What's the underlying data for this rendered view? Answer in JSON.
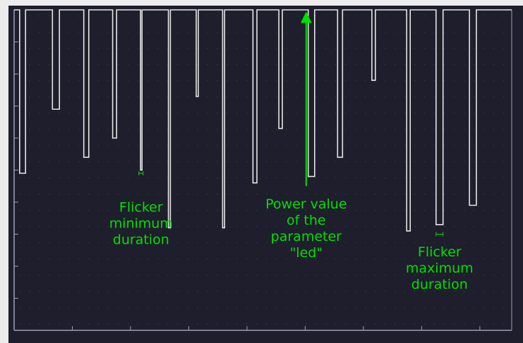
{
  "chart_data": {
    "type": "line",
    "title": "",
    "xlabel": "",
    "ylabel": "",
    "xlim": [
      0,
      100
    ],
    "ylim": [
      0,
      10
    ],
    "grid": true,
    "legend": "none",
    "colors": {
      "background": "#1e1e2c",
      "grid": "#3a3d4e",
      "axis": "#9aa0b0",
      "series": "#e6e6e6",
      "annotation": "#00e000"
    },
    "series": [
      {
        "points": [
          [
            0,
            10
          ],
          [
            1.1,
            10
          ],
          [
            1.1,
            4.9
          ],
          [
            2.3,
            4.9
          ],
          [
            2.3,
            10
          ],
          [
            7.7,
            10
          ],
          [
            7.7,
            6.9
          ],
          [
            9.1,
            6.9
          ],
          [
            9.1,
            10
          ],
          [
            14.0,
            10
          ],
          [
            14.0,
            5.4
          ],
          [
            15.0,
            5.4
          ],
          [
            15.0,
            10
          ],
          [
            19.8,
            10
          ],
          [
            19.8,
            6.0
          ],
          [
            20.6,
            6.0
          ],
          [
            20.6,
            10
          ],
          [
            25.4,
            10
          ],
          [
            25.4,
            5.0
          ],
          [
            25.7,
            5.0
          ],
          [
            25.7,
            10
          ],
          [
            31.0,
            10
          ],
          [
            31.0,
            3.2
          ],
          [
            31.4,
            3.2
          ],
          [
            31.4,
            10
          ],
          [
            36.6,
            10
          ],
          [
            36.6,
            7.3
          ],
          [
            37.0,
            7.3
          ],
          [
            37.0,
            10
          ],
          [
            41.9,
            10
          ],
          [
            41.9,
            3.2
          ],
          [
            42.3,
            3.2
          ],
          [
            42.3,
            10
          ],
          [
            48.0,
            10
          ],
          [
            48.0,
            4.6
          ],
          [
            48.8,
            4.6
          ],
          [
            48.8,
            10
          ],
          [
            53.2,
            10
          ],
          [
            53.2,
            6.3
          ],
          [
            53.9,
            6.3
          ],
          [
            53.9,
            10
          ],
          [
            59.1,
            10
          ],
          [
            59.1,
            4.8
          ],
          [
            60.4,
            4.8
          ],
          [
            60.4,
            10
          ],
          [
            65.0,
            10
          ],
          [
            65.0,
            5.4
          ],
          [
            66.0,
            5.4
          ],
          [
            66.0,
            10
          ],
          [
            71.9,
            10
          ],
          [
            71.9,
            7.8
          ],
          [
            72.6,
            7.8
          ],
          [
            72.6,
            10
          ],
          [
            78.9,
            10
          ],
          [
            78.9,
            3.1
          ],
          [
            79.6,
            3.1
          ],
          [
            79.6,
            10
          ],
          [
            84.8,
            10
          ],
          [
            84.8,
            3.3
          ],
          [
            86.2,
            3.3
          ],
          [
            86.2,
            10
          ],
          [
            91.5,
            10
          ],
          [
            91.5,
            3.9
          ],
          [
            92.9,
            3.9
          ],
          [
            92.9,
            10
          ],
          [
            100,
            10
          ]
        ]
      }
    ],
    "annotations": [
      {
        "text": [
          "Flicker",
          "minimum",
          "duration"
        ],
        "x": 25.5,
        "y": 4.1,
        "marker_y": 4.9,
        "marker_halfwidth": 0.25,
        "arrow": false
      },
      {
        "text": [
          "Power value",
          "of the",
          "parameter",
          "\"led\""
        ],
        "x": 58.7,
        "y": 4.2,
        "arrow_from_y": 4.5,
        "arrow_to_y": 9.9,
        "arrow": true
      },
      {
        "text": [
          "Flicker",
          "maximum",
          "duration"
        ],
        "x": 85.5,
        "y": 2.7,
        "marker_y": 3.0,
        "marker_halfwidth": 0.7,
        "arrow": false
      }
    ]
  }
}
